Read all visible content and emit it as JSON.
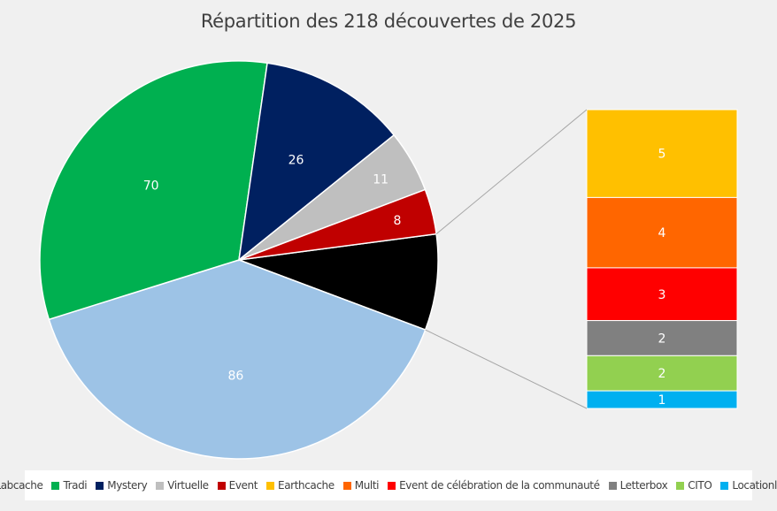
{
  "chart_data": {
    "type": "pie",
    "title": "Répartition des 218 découvertes de 2025",
    "slices": [
      {
        "name": "Labcache",
        "value": 86,
        "color": "#9dc3e6"
      },
      {
        "name": "Tradi",
        "value": 70,
        "color": "#00b050"
      },
      {
        "name": "Mystery",
        "value": 26,
        "color": "#002060"
      },
      {
        "name": "Virtuelle",
        "value": 11,
        "color": "#bfbfbf"
      },
      {
        "name": "Event",
        "value": 8,
        "color": "#c00000"
      }
    ],
    "breakout": [
      {
        "name": "Earthcache",
        "value": 5,
        "color": "#ffc000"
      },
      {
        "name": "Multi",
        "value": 4,
        "color": "#ff6600"
      },
      {
        "name": "Event de célébration de la communauté",
        "value": 3,
        "color": "#ff0000"
      },
      {
        "name": "Letterbox",
        "value": 2,
        "color": "#808080"
      },
      {
        "name": "CITO",
        "value": 2,
        "color": "#92d050"
      },
      {
        "name": "Locationless",
        "value": 1,
        "color": "#00b0f0"
      }
    ],
    "other_color": "#000000",
    "legend_position": "bottom"
  }
}
